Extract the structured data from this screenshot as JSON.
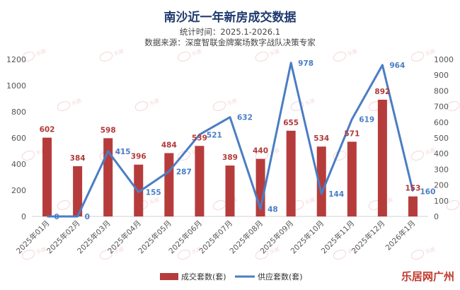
{
  "chart_data": {
    "type": "bar",
    "title": "南沙近一年新房成交数据",
    "subtitle": [
      "统计时间：2025.1-2026.1",
      "数据来源：深度智联金牌案场数字战队决策专家"
    ],
    "categories": [
      "2025年01月",
      "2025年02月",
      "2025年03月",
      "2025年04月",
      "2025年05月",
      "2025年06月",
      "2025年07月",
      "2025年08月",
      "2025年09月",
      "2025年10月",
      "2025年11月",
      "2025年12月",
      "2026年1月"
    ],
    "series": [
      {
        "name": "成交套数(套)",
        "type": "bar",
        "axis": "left",
        "color": "#b63c3c",
        "values": [
          602,
          384,
          598,
          396,
          484,
          539,
          389,
          440,
          655,
          534,
          571,
          892,
          153
        ]
      },
      {
        "name": "供应套数(套)",
        "type": "line",
        "axis": "right",
        "color": "#4a7dc4",
        "values": [
          0,
          0,
          415,
          155,
          287,
          521,
          632,
          48,
          978,
          144,
          619,
          964,
          160
        ]
      }
    ],
    "y_left": {
      "min": 0,
      "max": 1200,
      "ticks": [
        0,
        200,
        400,
        600,
        800,
        1000,
        1200
      ]
    },
    "y_right": {
      "min": 0,
      "max": 1000,
      "ticks": [
        0,
        100,
        200,
        300,
        400,
        500,
        600,
        700,
        800,
        900,
        1000
      ]
    },
    "grid": false,
    "legend_position": "bottom"
  },
  "watermark_text": "乐居",
  "brand": "乐居网广州"
}
